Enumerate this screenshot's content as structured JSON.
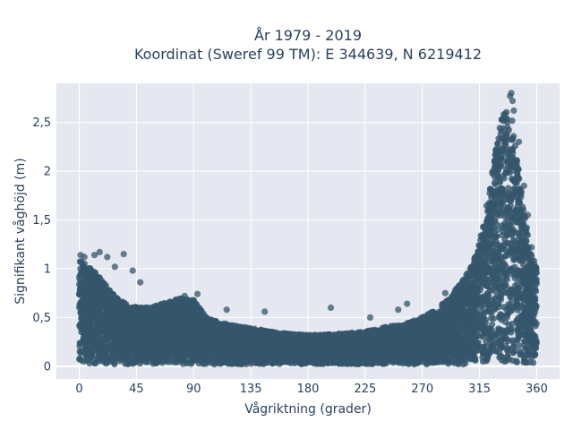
{
  "chart_data": {
    "type": "scatter",
    "title_line1": "År 1979 - 2019",
    "title_line2": "Koordinat (Sweref 99 TM): E 344639, N 6219412",
    "xlabel": "Vågriktning (grader)",
    "ylabel": "Signifikant våghöjd (m)",
    "xlim": [
      -18,
      378
    ],
    "ylim": [
      -0.13,
      2.9
    ],
    "x_ticks": [
      {
        "value": 0,
        "label": "0"
      },
      {
        "value": 45,
        "label": "45"
      },
      {
        "value": 90,
        "label": "90"
      },
      {
        "value": 135,
        "label": "135"
      },
      {
        "value": 180,
        "label": "180"
      },
      {
        "value": 225,
        "label": "225"
      },
      {
        "value": 270,
        "label": "270"
      },
      {
        "value": 315,
        "label": "315"
      },
      {
        "value": 360,
        "label": "360"
      }
    ],
    "y_ticks": [
      {
        "value": 0,
        "label": "0"
      },
      {
        "value": 0.5,
        "label": "0,5"
      },
      {
        "value": 1,
        "label": "1"
      },
      {
        "value": 1.5,
        "label": "1,5"
      },
      {
        "value": 2,
        "label": "2"
      },
      {
        "value": 2.5,
        "label": "2,5"
      }
    ],
    "grid": true,
    "marker_color": "#34566b",
    "plot_background": "#e5e8f0",
    "envelope": {
      "direction_deg": [
        0,
        10,
        20,
        30,
        40,
        50,
        60,
        70,
        80,
        90,
        100,
        110,
        120,
        130,
        140,
        150,
        160,
        170,
        180,
        190,
        200,
        210,
        220,
        230,
        240,
        250,
        260,
        270,
        280,
        290,
        300,
        310,
        315,
        320,
        325,
        330,
        335,
        340,
        345,
        350,
        355,
        360
      ],
      "max_height_m": [
        1.1,
        1.0,
        0.85,
        0.7,
        0.62,
        0.6,
        0.62,
        0.66,
        0.7,
        0.68,
        0.5,
        0.45,
        0.42,
        0.4,
        0.38,
        0.36,
        0.34,
        0.33,
        0.32,
        0.32,
        0.33,
        0.34,
        0.35,
        0.37,
        0.4,
        0.42,
        0.45,
        0.5,
        0.58,
        0.68,
        0.85,
        1.05,
        1.3,
        1.6,
        2.0,
        2.4,
        2.7,
        2.6,
        2.1,
        1.6,
        1.2,
        1.0
      ]
    },
    "outliers": [
      {
        "x": 1,
        "y": 1.14
      },
      {
        "x": 4,
        "y": 1.12
      },
      {
        "x": 12,
        "y": 1.14
      },
      {
        "x": 16,
        "y": 1.17
      },
      {
        "x": 22,
        "y": 1.12
      },
      {
        "x": 35,
        "y": 1.15
      },
      {
        "x": 28,
        "y": 1.02
      },
      {
        "x": 42,
        "y": 0.98
      },
      {
        "x": 48,
        "y": 0.86
      },
      {
        "x": 83,
        "y": 0.72
      },
      {
        "x": 93,
        "y": 0.74
      },
      {
        "x": 116,
        "y": 0.58
      },
      {
        "x": 146,
        "y": 0.56
      },
      {
        "x": 198,
        "y": 0.6
      },
      {
        "x": 229,
        "y": 0.5
      },
      {
        "x": 251,
        "y": 0.58
      },
      {
        "x": 258,
        "y": 0.64
      },
      {
        "x": 288,
        "y": 0.75
      },
      {
        "x": 305,
        "y": 0.86
      },
      {
        "x": 309,
        "y": 1.0
      },
      {
        "x": 311,
        "y": 1.1
      },
      {
        "x": 322,
        "y": 1.36
      },
      {
        "x": 324,
        "y": 1.48
      },
      {
        "x": 326,
        "y": 1.66
      },
      {
        "x": 329,
        "y": 1.8
      },
      {
        "x": 332,
        "y": 2.05
      },
      {
        "x": 335,
        "y": 2.3
      },
      {
        "x": 337,
        "y": 2.45
      },
      {
        "x": 339,
        "y": 2.77
      },
      {
        "x": 340,
        "y": 2.8
      },
      {
        "x": 341,
        "y": 2.72
      },
      {
        "x": 342,
        "y": 2.62
      },
      {
        "x": 346,
        "y": 2.3
      },
      {
        "x": 350,
        "y": 1.85
      },
      {
        "x": 353,
        "y": 1.55
      },
      {
        "x": 356,
        "y": 1.22
      }
    ]
  }
}
